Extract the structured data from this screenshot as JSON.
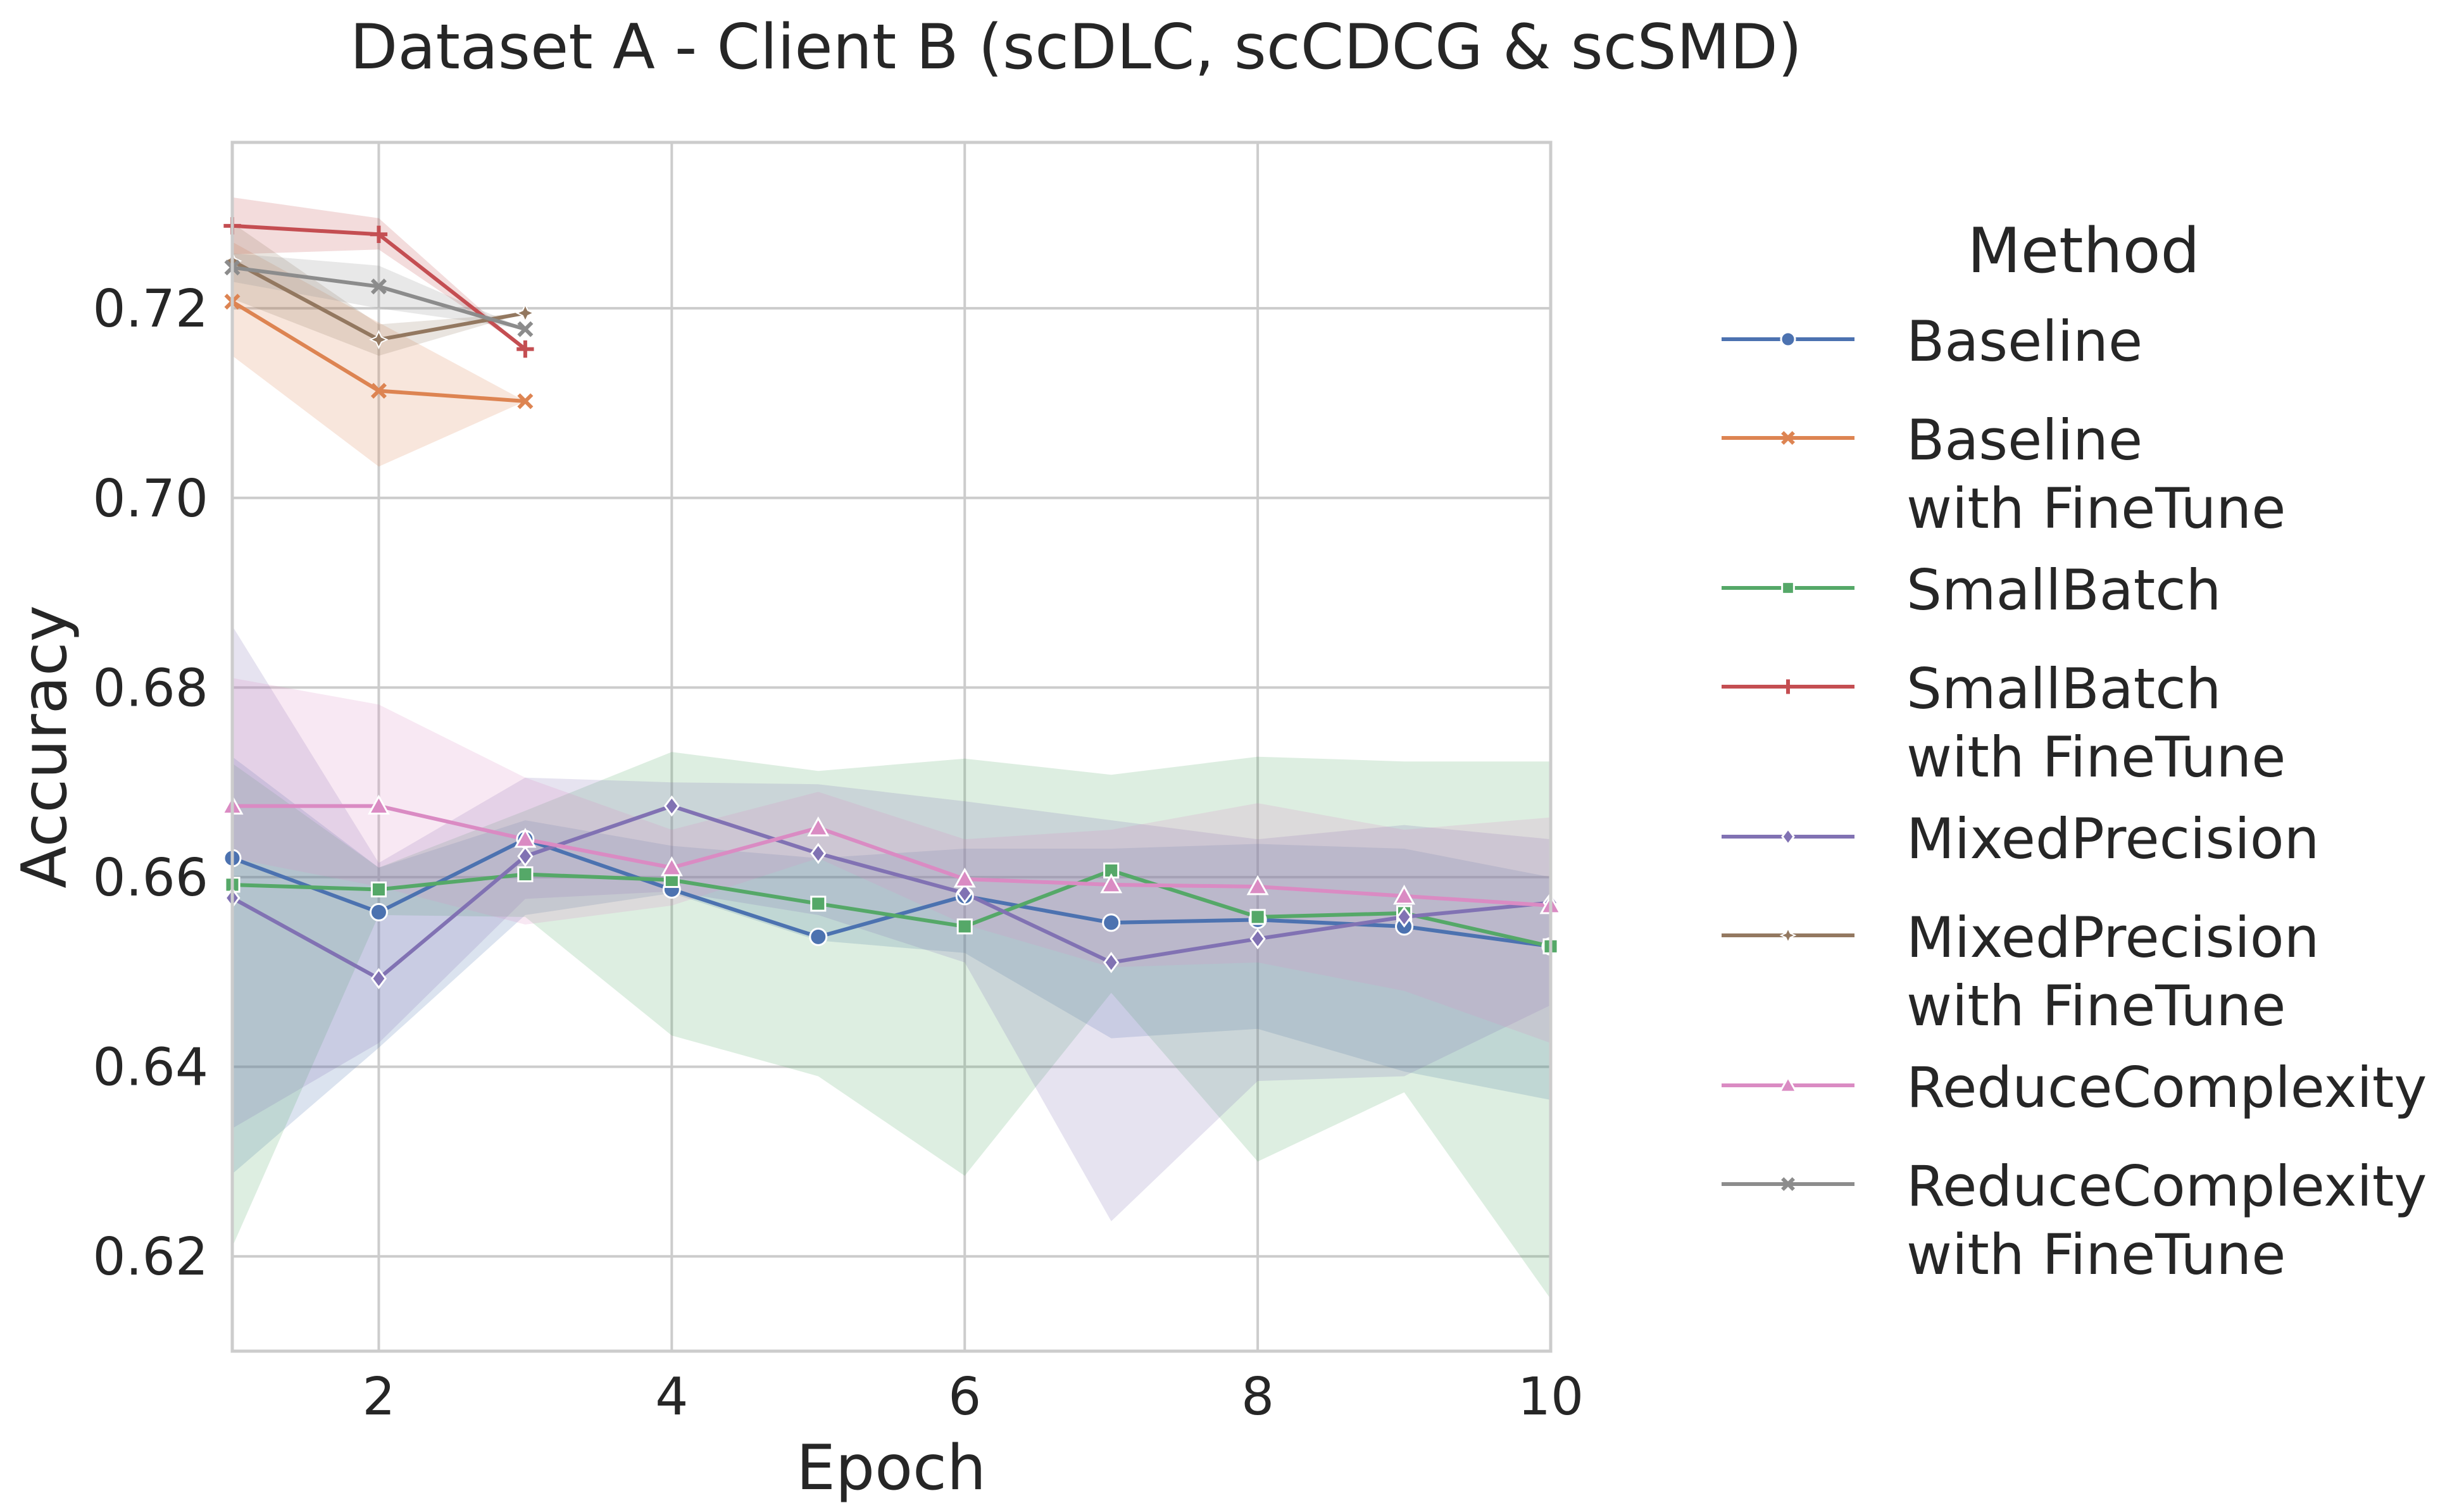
{
  "chart_data": {
    "type": "line",
    "title": "Dataset A - Client B (scDLC, scCDCG & scSMD)",
    "xlabel": "Epoch",
    "ylabel": "Accuracy",
    "xlim": [
      1,
      10
    ],
    "ylim": [
      0.61,
      0.7375
    ],
    "x_ticks": [
      2,
      4,
      6,
      8,
      10
    ],
    "y_ticks": [
      0.62,
      0.64,
      0.66,
      0.68,
      0.7,
      0.72
    ],
    "x_tick_labels": [
      "2",
      "4",
      "6",
      "8",
      "10"
    ],
    "y_tick_labels": [
      "0.62",
      "0.64",
      "0.66",
      "0.68",
      "0.70",
      "0.72"
    ],
    "grid": true,
    "legend": {
      "title": "Method",
      "placement": "outside-right"
    },
    "series": [
      {
        "name": "Baseline",
        "color": "#4C72B0",
        "marker": "circle",
        "x": [
          1,
          2,
          3,
          4,
          5,
          6,
          7,
          8,
          9,
          10
        ],
        "y": [
          0.662,
          0.6563,
          0.664,
          0.6587,
          0.6537,
          0.658,
          0.6552,
          0.6555,
          0.6548,
          0.6527
        ],
        "lower": [
          0.6287,
          0.642,
          0.656,
          0.6583,
          0.6533,
          0.652,
          0.643,
          0.644,
          0.6395,
          0.6365
        ],
        "upper": [
          0.6727,
          0.661,
          0.666,
          0.6633,
          0.662,
          0.663,
          0.663,
          0.6635,
          0.663,
          0.66
        ]
      },
      {
        "name": "Baseline\nwith FineTune",
        "color": "#DD8452",
        "marker": "x",
        "x": [
          1,
          2,
          3
        ],
        "y": [
          0.7207,
          0.7113,
          0.7102
        ],
        "lower": [
          0.715,
          0.7033,
          0.7102
        ],
        "upper": [
          0.727,
          0.7185,
          0.7102
        ]
      },
      {
        "name": "SmallBatch",
        "color": "#55A868",
        "marker": "square",
        "x": [
          1,
          2,
          3,
          4,
          5,
          6,
          7,
          8,
          9,
          10
        ],
        "y": [
          0.6592,
          0.6587,
          0.6603,
          0.6597,
          0.6572,
          0.6548,
          0.6607,
          0.6558,
          0.6562,
          0.6527
        ],
        "lower": [
          0.621,
          0.656,
          0.6558,
          0.6433,
          0.639,
          0.6285,
          0.6478,
          0.63,
          0.6373,
          0.6155
        ],
        "upper": [
          0.672,
          0.661,
          0.667,
          0.6732,
          0.6712,
          0.6725,
          0.6708,
          0.6727,
          0.6722,
          0.6722
        ]
      },
      {
        "name": "SmallBatch\nwith FineTune",
        "color": "#C44E52",
        "marker": "plus",
        "x": [
          1,
          2,
          3
        ],
        "y": [
          0.7287,
          0.7278,
          0.7157
        ],
        "lower": [
          0.7257,
          0.7262,
          0.7157
        ],
        "upper": [
          0.7317,
          0.7295,
          0.7157
        ]
      },
      {
        "name": "MixedPrecision",
        "color": "#8172B3",
        "marker": "diamond",
        "x": [
          1,
          2,
          3,
          4,
          5,
          6,
          7,
          8,
          9,
          10
        ],
        "y": [
          0.6578,
          0.6493,
          0.6622,
          0.6675,
          0.6625,
          0.6583,
          0.651,
          0.6535,
          0.6558,
          0.6573
        ],
        "lower": [
          0.6335,
          0.6425,
          0.6577,
          0.6585,
          0.656,
          0.651,
          0.6237,
          0.6385,
          0.639,
          0.6465
        ],
        "upper": [
          0.6865,
          0.6615,
          0.6705,
          0.67,
          0.6698,
          0.668,
          0.666,
          0.664,
          0.6655,
          0.664
        ]
      },
      {
        "name": "MixedPrecision\nwith FineTune",
        "color": "#937860",
        "marker": "star",
        "x": [
          1,
          2,
          3
        ],
        "y": [
          0.725,
          0.7167,
          0.7195
        ],
        "lower": [
          0.721,
          0.715,
          0.7195
        ],
        "upper": [
          0.729,
          0.7183,
          0.7195
        ]
      },
      {
        "name": "ReduceComplexity",
        "color": "#DA8BC3",
        "marker": "triangle",
        "x": [
          1,
          2,
          3,
          4,
          5,
          6,
          7,
          8,
          9,
          10
        ],
        "y": [
          0.6675,
          0.6675,
          0.664,
          0.661,
          0.6652,
          0.6598,
          0.6592,
          0.659,
          0.658,
          0.657
        ],
        "lower": [
          0.662,
          0.659,
          0.655,
          0.657,
          0.662,
          0.655,
          0.6505,
          0.651,
          0.648,
          0.6425
        ],
        "upper": [
          0.681,
          0.6782,
          0.6705,
          0.665,
          0.669,
          0.664,
          0.665,
          0.6678,
          0.665,
          0.6663
        ]
      },
      {
        "name": "ReduceComplexity\nwith FineTune",
        "color": "#8C8C8C",
        "marker": "x",
        "x": [
          1,
          2,
          3
        ],
        "y": [
          0.7243,
          0.7223,
          0.7178
        ],
        "lower": [
          0.7228,
          0.72,
          0.7178
        ],
        "upper": [
          0.7258,
          0.7245,
          0.7178
        ]
      }
    ]
  }
}
